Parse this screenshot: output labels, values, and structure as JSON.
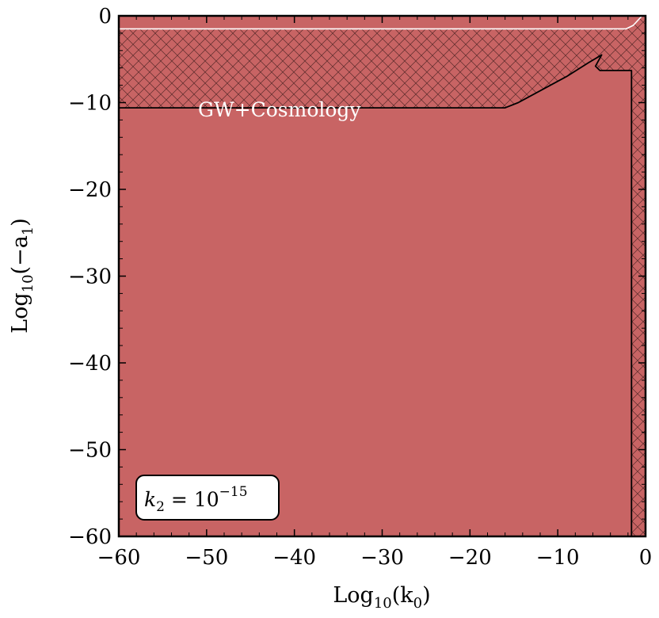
{
  "chart_data": {
    "type": "area",
    "title": "",
    "xlabel": "Log10(k0)",
    "ylabel": "Log10(−a1)",
    "xlabel_parts": {
      "base": "Log",
      "sub": "10",
      "open": "(k",
      "var_sub": "0",
      "close": ")"
    },
    "ylabel_parts": {
      "base": "Log",
      "sub": "10",
      "open": "(−a",
      "var_sub": "1",
      "close": ")"
    },
    "xlim": [
      -60,
      0
    ],
    "ylim": [
      -60,
      0
    ],
    "x_ticks": [
      -60,
      -50,
      -40,
      -30,
      -20,
      -10,
      0
    ],
    "y_ticks": [
      -60,
      -50,
      -40,
      -30,
      -20,
      -10,
      0
    ],
    "x_tick_labels": [
      "−60",
      "−50",
      "−40",
      "−30",
      "−20",
      "−10",
      "0"
    ],
    "y_tick_labels": [
      "−60",
      "−50",
      "−40",
      "−30",
      "−20",
      "−10",
      "0"
    ],
    "grid": false,
    "fill_color": "#c86464",
    "hatch_color": "#5a2a2a",
    "series": [
      {
        "name": "GW+Cosmology bound",
        "color": "#000000",
        "points": [
          [
            -60,
            -10.6
          ],
          [
            -16,
            -10.6
          ],
          [
            -14.5,
            -10.0
          ],
          [
            -9,
            -7.0
          ],
          [
            -6.5,
            -5.4
          ],
          [
            -5.0,
            -4.5
          ],
          [
            -5.7,
            -5.8
          ],
          [
            -5.2,
            -6.3
          ],
          [
            -1.6,
            -6.3
          ],
          [
            -1.6,
            -60
          ]
        ]
      },
      {
        "name": "upper boundary",
        "color": "#ffffff",
        "points": [
          [
            -60,
            -1.5
          ],
          [
            -2.2,
            -1.5
          ],
          [
            -1.4,
            -1.1
          ],
          [
            -0.4,
            0
          ]
        ]
      }
    ],
    "hatched_regions": [
      {
        "name": "excluded-top",
        "points": [
          [
            -60,
            -1.5
          ],
          [
            -60,
            -10.6
          ],
          [
            -16,
            -10.6
          ],
          [
            -14.5,
            -10.0
          ],
          [
            -9,
            -7.0
          ],
          [
            -6.5,
            -5.4
          ],
          [
            -5.0,
            -4.5
          ],
          [
            -5.7,
            -5.8
          ],
          [
            -5.2,
            -6.3
          ],
          [
            -1.6,
            -6.3
          ],
          [
            -1.6,
            -60
          ],
          [
            0,
            -60
          ],
          [
            0,
            0
          ],
          [
            -0.4,
            0
          ],
          [
            -1.4,
            -1.1
          ],
          [
            -2.2,
            -1.5
          ]
        ]
      }
    ],
    "annotations": [
      {
        "text": "GW+Cosmology",
        "x": -51,
        "y": -9.5,
        "color": "#ffffff"
      }
    ],
    "legend_box": {
      "text_var": "k",
      "text_sub": "2",
      "text_eq": " = 10",
      "text_sup": "−15",
      "placement": "bottom-left"
    }
  }
}
